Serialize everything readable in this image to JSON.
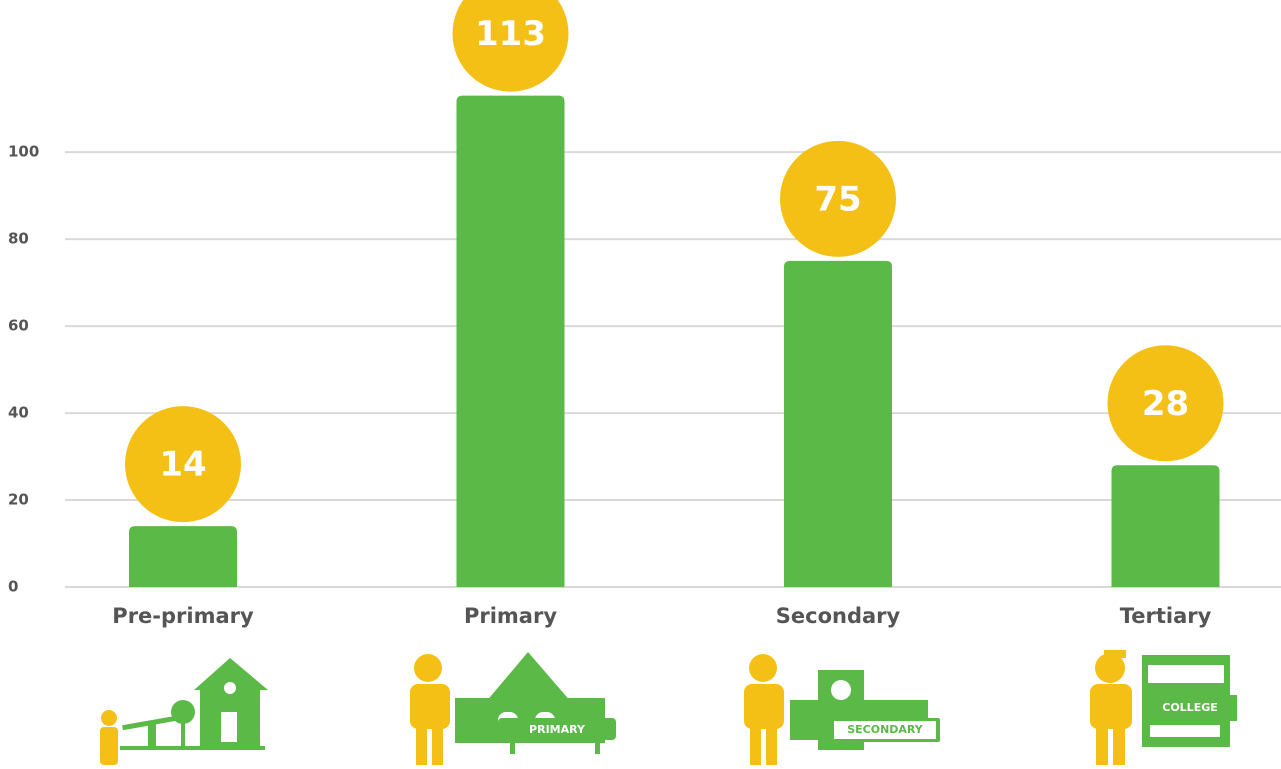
{
  "chart_data": {
    "type": "bar",
    "categories": [
      "Pre-primary",
      "Primary",
      "Secondary",
      "Tertiary"
    ],
    "values": [
      14,
      113,
      75,
      28
    ],
    "color": "#5bb947",
    "label_color": "#f5c016",
    "ylim": [
      0,
      135
    ],
    "yticks": [
      0,
      20,
      40,
      60,
      80,
      100
    ],
    "grid": true,
    "icon_texts": [
      "PRIMARY",
      "SECONDARY",
      "COLLEGE"
    ]
  }
}
